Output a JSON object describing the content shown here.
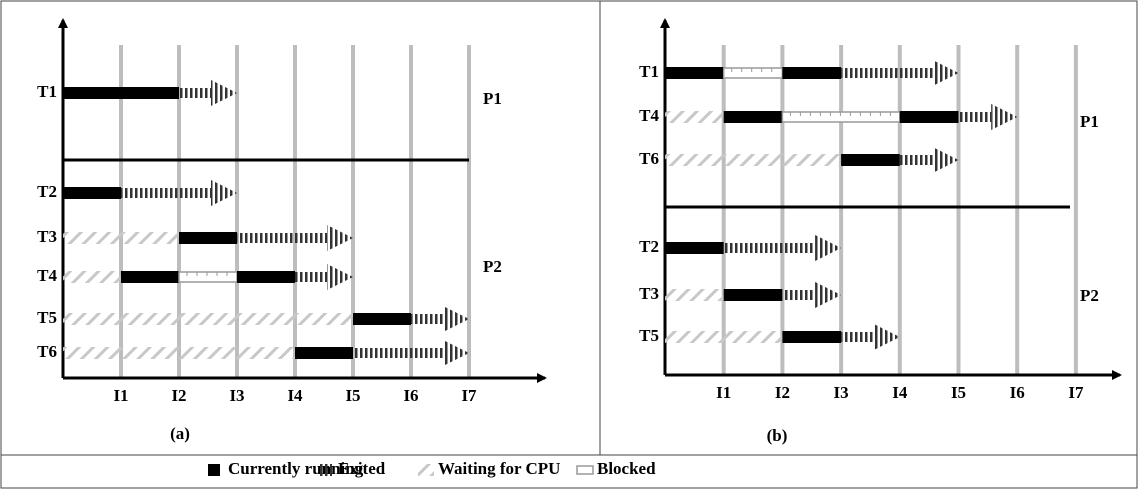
{
  "panels": [
    {
      "caption": "(a)",
      "intervals": [
        "I1",
        "I2",
        "I3",
        "I4",
        "I5",
        "I6",
        "I7"
      ],
      "processes": [
        "P1",
        "P2"
      ],
      "threads": [
        "T1",
        "T2",
        "T3",
        "T4",
        "T5",
        "T6"
      ]
    },
    {
      "caption": "(b)",
      "intervals": [
        "I1",
        "I2",
        "I3",
        "I4",
        "I5",
        "I6",
        "I7"
      ],
      "processes": [
        "P1",
        "P2"
      ],
      "threads": [
        "T1",
        "T4",
        "T6",
        "T2",
        "T3",
        "T5"
      ]
    }
  ],
  "legend": [
    "Currently running",
    "Exited",
    "Waiting for CPU",
    "Blocked"
  ]
}
